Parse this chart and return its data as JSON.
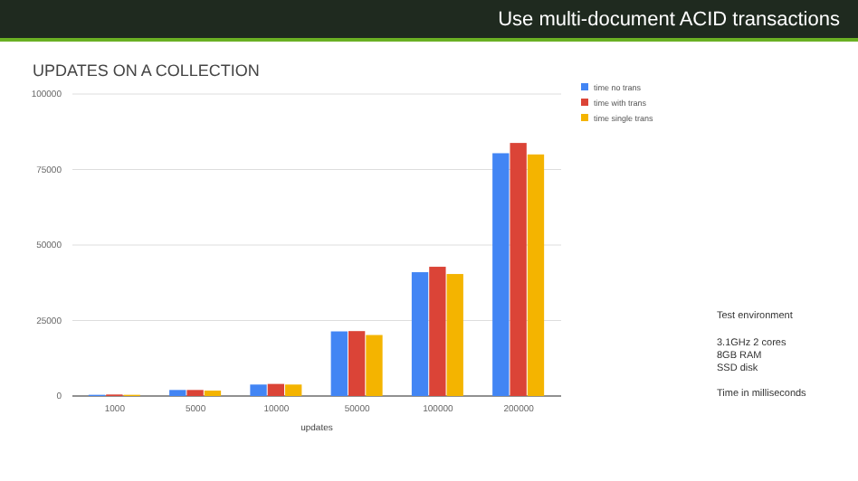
{
  "chart_data": {
    "type": "bar",
    "title": "UPDATES ON A COLLECTION",
    "subtitle": "Use multi-document ACID transactions",
    "xlabel": "updates",
    "categories": [
      "1000",
      "5000",
      "10000",
      "50000",
      "100000",
      "200000"
    ],
    "series": [
      {
        "name": "time no trans",
        "color": "#4285f4",
        "values": [
          400,
          2000,
          3800,
          21400,
          41000,
          80400
        ]
      },
      {
        "name": "time with trans",
        "color": "#db4437",
        "values": [
          500,
          2000,
          4000,
          21500,
          42800,
          83800
        ]
      },
      {
        "name": "time single trans",
        "color": "#f4b400",
        "values": [
          400,
          1800,
          3800,
          20200,
          40400,
          80000
        ]
      }
    ],
    "ylim": [
      0,
      100000
    ],
    "yticks": [
      0,
      25000,
      50000,
      75000,
      100000
    ],
    "grid": "y",
    "legend": "right",
    "annotations": [
      "Test environment",
      "3.1GHz 2 cores",
      "8GB RAM",
      "SSD disk",
      "Time in milliseconds"
    ]
  }
}
